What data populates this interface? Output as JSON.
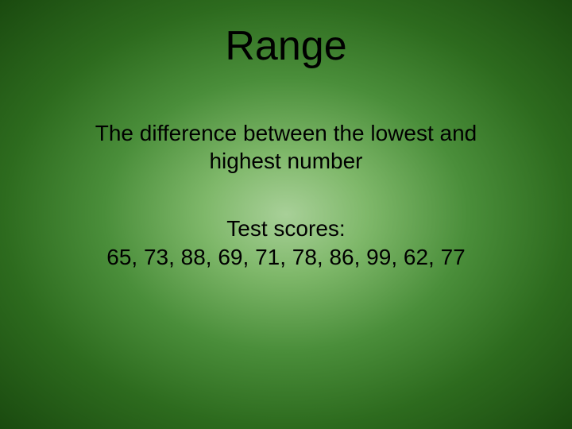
{
  "slide": {
    "title": "Range",
    "definition": "The difference between the lowest and\nhighest number",
    "example_label": "Test scores:",
    "example_data": "65, 73, 88, 69, 71, 78, 86, 99, 62, 77",
    "background": {
      "type": "radial-gradient",
      "center_color": "#a8d098",
      "mid_color": "#4a8e3a",
      "edge_color": "#1a4a0f"
    },
    "text_color": "#000000",
    "title_fontsize": 52,
    "body_fontsize": 28,
    "font_family": "Arial"
  }
}
